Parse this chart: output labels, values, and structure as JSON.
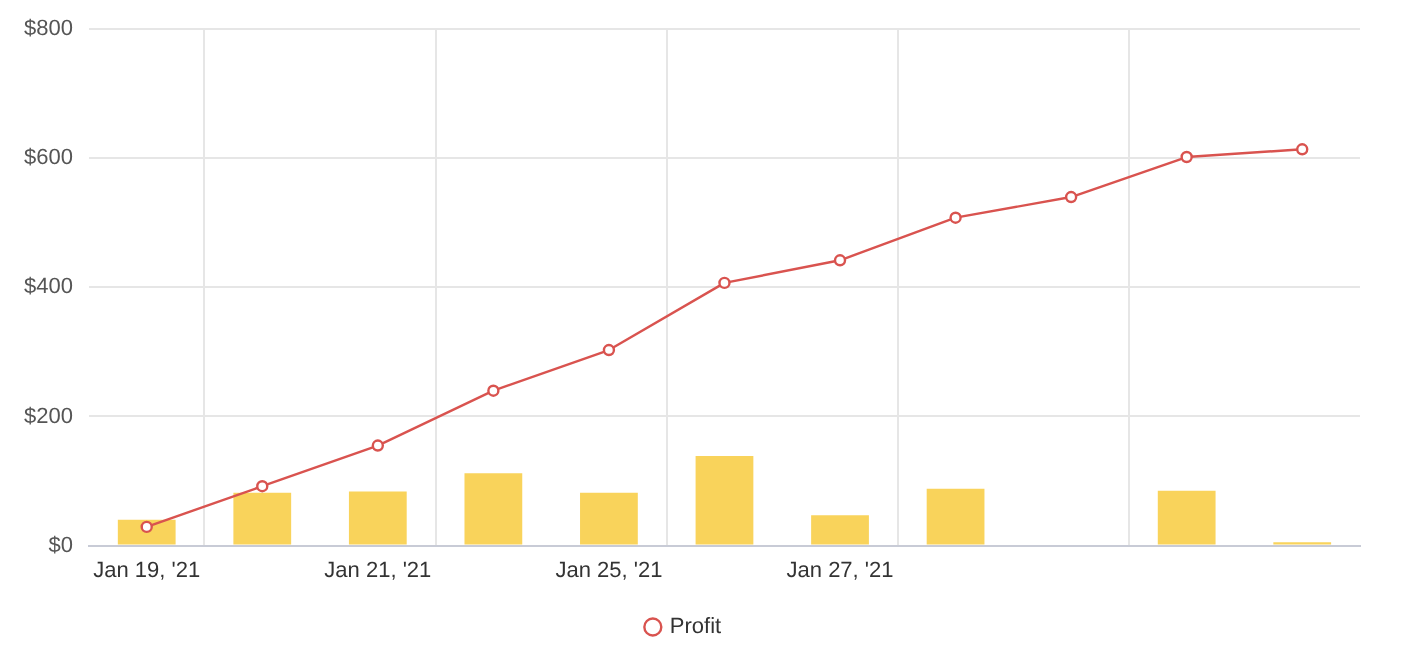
{
  "chart_data": {
    "type": "bar",
    "categories": [
      "Jan 19, '21",
      null,
      "Jan 21, '21",
      null,
      "Jan 25, '21",
      null,
      "Jan 27, '21",
      null,
      null,
      null,
      null
    ],
    "series": [
      {
        "color": "#f9d35b",
        "values": [
          40,
          82,
          84,
          112,
          82,
          139,
          47,
          88,
          null,
          85,
          5
        ]
      },
      {
        "type": "line",
        "name": "Profit",
        "color": "#d9534f",
        "values": [
          29,
          92,
          155,
          240,
          303,
          407,
          442,
          508,
          540,
          602,
          614
        ]
      }
    ],
    "ylim": [
      0,
      800
    ],
    "yticks": [
      {
        "value": 0,
        "label": "$0"
      },
      {
        "value": 200,
        "label": "$200"
      },
      {
        "value": 400,
        "label": "$400"
      },
      {
        "value": 600,
        "label": "$600"
      },
      {
        "value": 800,
        "label": "$800"
      }
    ],
    "grid": true,
    "legend": "bottom",
    "marker": "circle",
    "line_style": "solid"
  }
}
